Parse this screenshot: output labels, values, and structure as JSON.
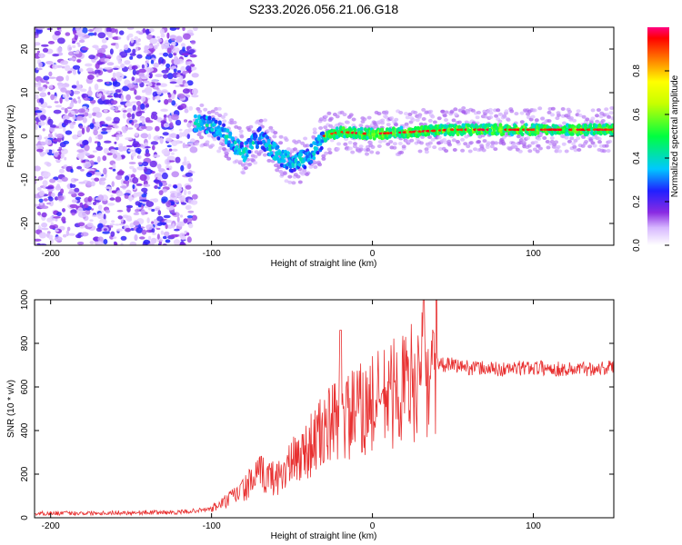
{
  "title": "S233.2026.056.21.06.G18",
  "chart_data": [
    {
      "type": "heatmap",
      "xlabel": "Height of straight line (km)",
      "ylabel": "Frequency (Hz)",
      "xlim": [
        -210,
        150
      ],
      "ylim": [
        -25,
        25
      ],
      "xticks": [
        -200,
        -100,
        0,
        100
      ],
      "yticks": [
        -20,
        -10,
        0,
        10,
        20
      ],
      "colorbar": {
        "label": "Normalized spectral amplitude",
        "range": [
          0,
          1
        ],
        "ticks": [
          0.0,
          0.2,
          0.4,
          0.6,
          0.8
        ]
      },
      "ridge": {
        "description_points_km_hz": [
          [
            -110,
            3
          ],
          [
            -100,
            2.5
          ],
          [
            -90,
            0
          ],
          [
            -80,
            -4
          ],
          [
            -70,
            0
          ],
          [
            -60,
            -4
          ],
          [
            -50,
            -6
          ],
          [
            -40,
            -5
          ],
          [
            -30,
            0
          ],
          [
            -20,
            1
          ],
          [
            0,
            0.5
          ],
          [
            50,
            1.5
          ],
          [
            100,
            1.5
          ],
          [
            150,
            1.5
          ]
        ]
      }
    },
    {
      "type": "line",
      "xlabel": "Height of straight line (km)",
      "ylabel": "SNR (10 * v/v)",
      "xlim": [
        -210,
        150
      ],
      "ylim": [
        0,
        1000
      ],
      "xticks": [
        -200,
        -100,
        0,
        100
      ],
      "yticks": [
        0,
        200,
        400,
        600,
        800,
        1000
      ],
      "series": [
        {
          "name": "SNR",
          "color": "#e83030",
          "envelope_points": [
            [
              -210,
              20
            ],
            [
              -120,
              25
            ],
            [
              -100,
              40
            ],
            [
              -90,
              80
            ],
            [
              -80,
              130
            ],
            [
              -70,
              200
            ],
            [
              -60,
              180
            ],
            [
              -50,
              250
            ],
            [
              -40,
              320
            ],
            [
              -30,
              400
            ],
            [
              -20,
              450
            ],
            [
              -10,
              480
            ],
            [
              0,
              520
            ],
            [
              10,
              560
            ],
            [
              20,
              600
            ],
            [
              30,
              650
            ],
            [
              40,
              700
            ],
            [
              50,
              700
            ],
            [
              60,
              690
            ],
            [
              80,
              680
            ],
            [
              100,
              690
            ],
            [
              120,
              680
            ],
            [
              150,
              690
            ]
          ]
        }
      ]
    }
  ]
}
